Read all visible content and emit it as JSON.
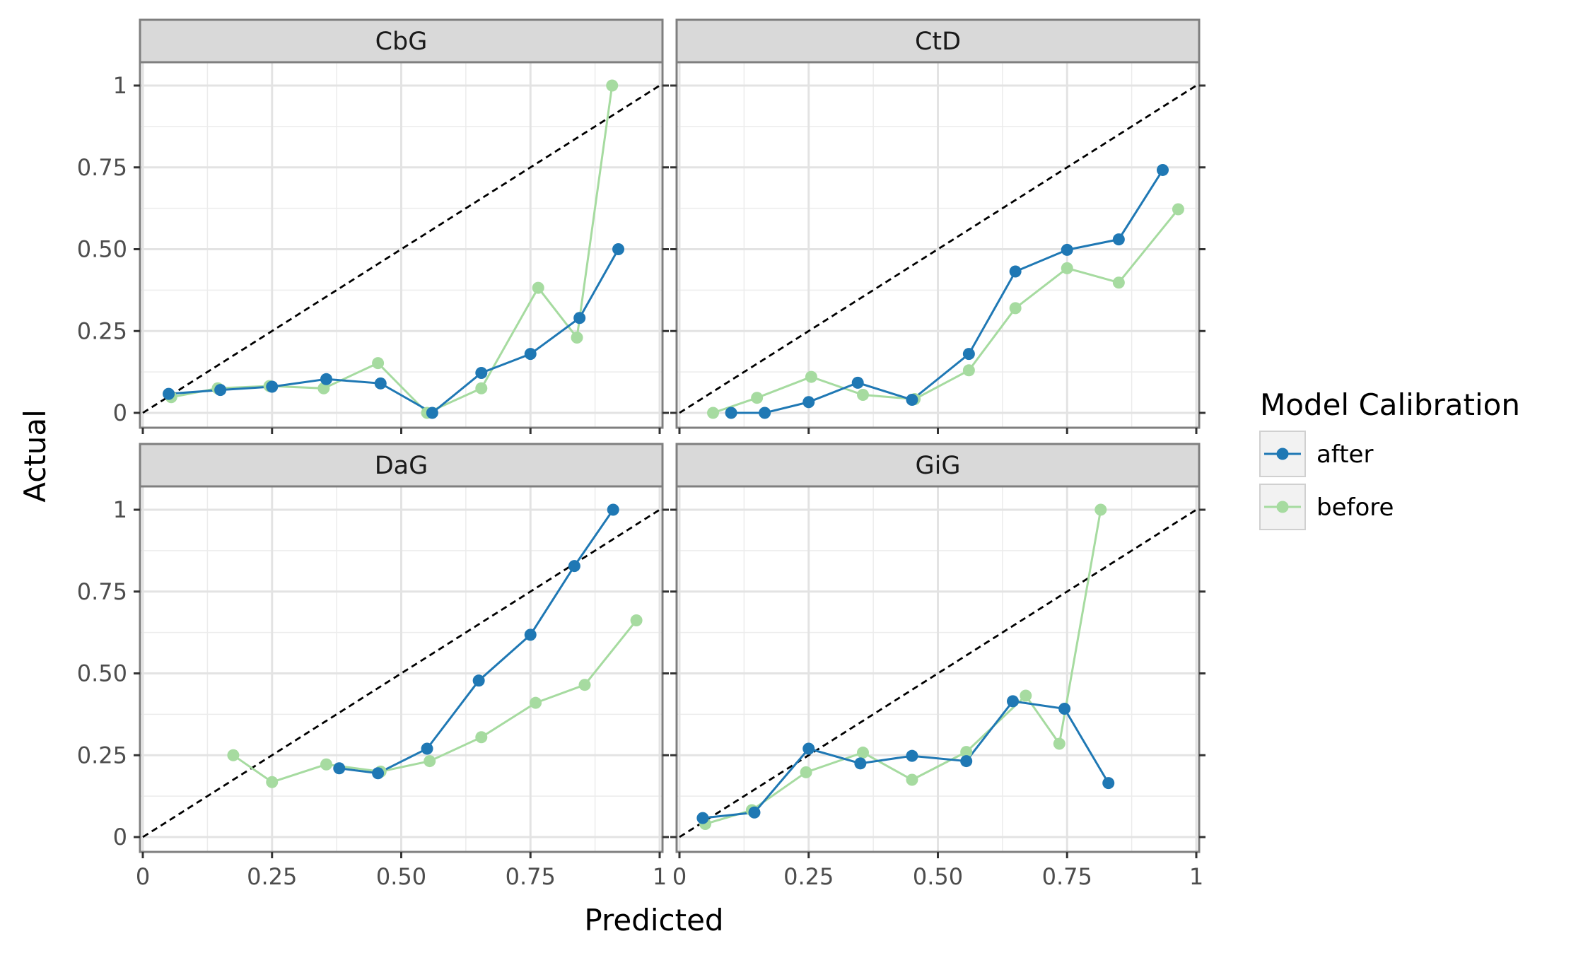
{
  "chart_data": {
    "type": "line",
    "xlabel": "Predicted",
    "ylabel": "Actual",
    "xlim": [
      0,
      1
    ],
    "ylim": [
      -0.04,
      1.04
    ],
    "x_ticks": [
      0,
      0.25,
      0.5,
      0.75,
      1
    ],
    "x_tick_labels": [
      "0",
      "0.25",
      "0.50",
      "0.75",
      "1"
    ],
    "y_ticks": [
      0,
      0.25,
      0.5,
      0.75,
      1
    ],
    "y_tick_labels": [
      "0",
      "0.25",
      "0.50",
      "0.75",
      "1"
    ],
    "reference_line": "dashed diagonal y = x",
    "grid": true,
    "legend": {
      "title": "Model Calibration",
      "placement": "right",
      "entries": [
        {
          "label": "after",
          "color": "#1f78b4"
        },
        {
          "label": "before",
          "color": "#a6dba0"
        }
      ]
    },
    "panels": [
      {
        "title": "CbG",
        "series": [
          {
            "name": "after",
            "color": "#1f78b4",
            "x": [
              0.05,
              0.15,
              0.25,
              0.355,
              0.46,
              0.56,
              0.655,
              0.75,
              0.845,
              0.92
            ],
            "y": [
              0.058,
              0.07,
              0.08,
              0.103,
              0.09,
              0.0,
              0.122,
              0.18,
              0.29,
              0.5
            ]
          },
          {
            "name": "before",
            "color": "#a6dba0",
            "x": [
              0.055,
              0.145,
              0.245,
              0.35,
              0.455,
              0.55,
              0.655,
              0.765,
              0.84,
              0.908
            ],
            "y": [
              0.048,
              0.075,
              0.082,
              0.075,
              0.152,
              0.0,
              0.075,
              0.382,
              0.23,
              1.0
            ]
          }
        ]
      },
      {
        "title": "CtD",
        "series": [
          {
            "name": "after",
            "color": "#1f78b4",
            "x": [
              0.1,
              0.165,
              0.25,
              0.345,
              0.45,
              0.56,
              0.65,
              0.75,
              0.85,
              0.935
            ],
            "y": [
              0.0,
              0.0,
              0.033,
              0.092,
              0.04,
              0.18,
              0.432,
              0.498,
              0.53,
              0.742
            ]
          },
          {
            "name": "before",
            "color": "#a6dba0",
            "x": [
              0.065,
              0.15,
              0.255,
              0.355,
              0.455,
              0.56,
              0.65,
              0.75,
              0.85,
              0.965
            ],
            "y": [
              0.0,
              0.046,
              0.11,
              0.055,
              0.042,
              0.13,
              0.32,
              0.442,
              0.398,
              0.622
            ]
          }
        ]
      },
      {
        "title": "DaG",
        "series": [
          {
            "name": "after",
            "color": "#1f78b4",
            "x": [
              0.38,
              0.455,
              0.55,
              0.65,
              0.75,
              0.835,
              0.91
            ],
            "y": [
              0.21,
              0.195,
              0.27,
              0.478,
              0.618,
              0.828,
              1.0
            ]
          },
          {
            "name": "before",
            "color": "#a6dba0",
            "x": [
              0.175,
              0.25,
              0.355,
              0.46,
              0.555,
              0.655,
              0.76,
              0.855,
              0.955
            ],
            "y": [
              0.25,
              0.168,
              0.222,
              0.2,
              0.232,
              0.305,
              0.41,
              0.465,
              0.662
            ]
          }
        ]
      },
      {
        "title": "GiG",
        "series": [
          {
            "name": "after",
            "color": "#1f78b4",
            "x": [
              0.045,
              0.145,
              0.25,
              0.35,
              0.45,
              0.555,
              0.645,
              0.745,
              0.83
            ],
            "y": [
              0.058,
              0.075,
              0.27,
              0.225,
              0.248,
              0.232,
              0.415,
              0.392,
              0.165
            ]
          },
          {
            "name": "before",
            "color": "#a6dba0",
            "x": [
              0.05,
              0.14,
              0.245,
              0.355,
              0.45,
              0.555,
              0.67,
              0.735,
              0.815
            ],
            "y": [
              0.04,
              0.082,
              0.198,
              0.258,
              0.175,
              0.26,
              0.432,
              0.285,
              1.0
            ]
          }
        ]
      }
    ]
  }
}
